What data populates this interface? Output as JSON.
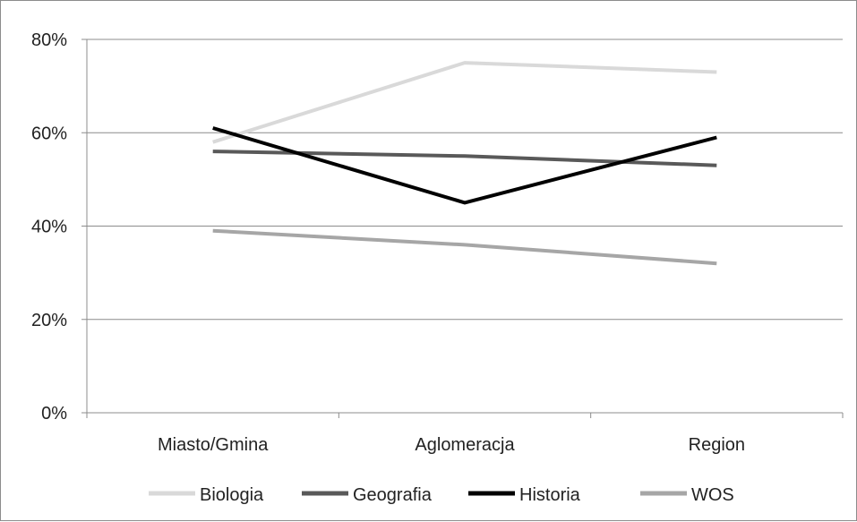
{
  "chart_data": {
    "type": "line",
    "title": "",
    "xlabel": "",
    "ylabel": "",
    "categories": [
      "Miasto/Gmina",
      "Aglomeracja",
      "Region"
    ],
    "ylim": [
      0,
      80
    ],
    "yticks": [
      "0%",
      "20%",
      "40%",
      "60%",
      "80%"
    ],
    "ytick_values": [
      0,
      20,
      40,
      60,
      80
    ],
    "grid": true,
    "legend_position": "bottom",
    "series": [
      {
        "name": "Biologia",
        "values": [
          58,
          75,
          73
        ],
        "color": "#d9d9d9"
      },
      {
        "name": "Geografia",
        "values": [
          56,
          55,
          53
        ],
        "color": "#595959"
      },
      {
        "name": "Historia",
        "values": [
          61,
          45,
          59
        ],
        "color": "#000000"
      },
      {
        "name": "WOS",
        "values": [
          39,
          36,
          32
        ],
        "color": "#a6a6a6"
      }
    ]
  }
}
